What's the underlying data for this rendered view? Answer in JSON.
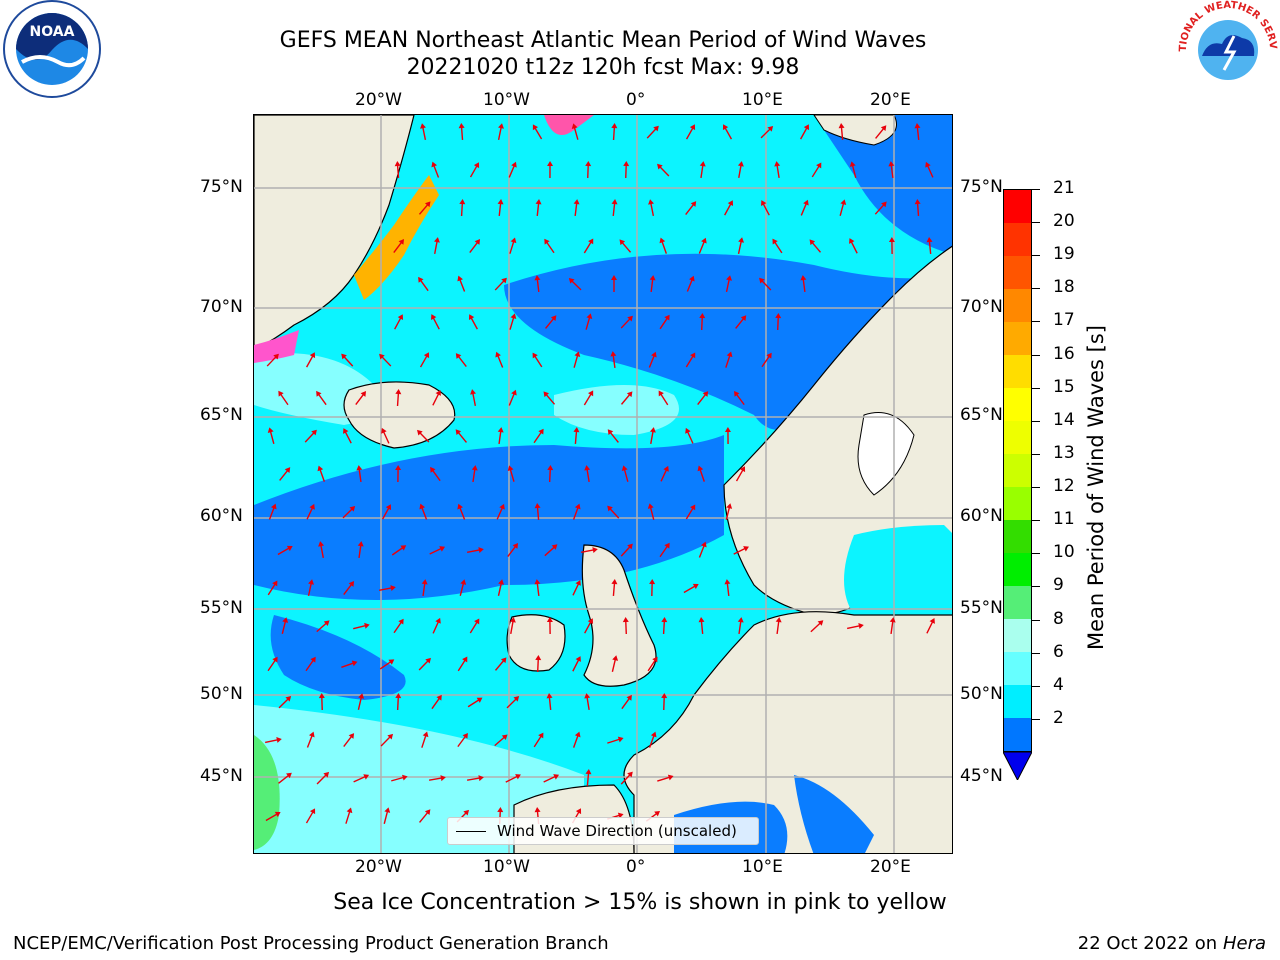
{
  "title_line1": "GEFS MEAN Northeast Atlantic Mean Period of Wind Waves",
  "title_line2": "20221020 t12z 120h fcst   Max: 9.98",
  "top_ticks": [
    "20°W",
    "10°W",
    "0°",
    "10°E",
    "20°E"
  ],
  "bottom_ticks": [
    "20°W",
    "10°W",
    "0°",
    "10°E",
    "20°E"
  ],
  "left_ticks": [
    "75°N",
    "70°N",
    "65°N",
    "60°N",
    "55°N",
    "50°N",
    "45°N"
  ],
  "right_ticks": [
    "75°N",
    "70°N",
    "65°N",
    "60°N",
    "55°N",
    "50°N",
    "45°N"
  ],
  "colorbar": {
    "label": "Mean Period of Wind Waves [s]",
    "ticks": [
      "21",
      "20",
      "19",
      "18",
      "17",
      "16",
      "15",
      "14",
      "13",
      "12",
      "11",
      "10",
      "9",
      "8",
      "6",
      "4",
      "2"
    ],
    "colors": [
      "#ff0000",
      "#ff3300",
      "#ff5500",
      "#ff8800",
      "#ffaa00",
      "#ffdd00",
      "#ffff00",
      "#eeff00",
      "#ccff00",
      "#99ff00",
      "#33dd00",
      "#00ee00",
      "#55ee77",
      "#aaffee",
      "#66ffff",
      "#00eeff",
      "#0077ff"
    ],
    "under_color": "#0000ee"
  },
  "legend": {
    "label": "Wind Wave Direction (unscaled)"
  },
  "note": "Sea Ice Concentration > 15% is shown in pink to yellow",
  "footer_left": "NCEP/EMC/Verification Post Processing Product Generation Branch",
  "footer_right_prefix": "22 Oct 2022 on ",
  "footer_right_host": "Hera",
  "logos": {
    "left": "NOAA",
    "right": "NATIONAL WEATHER SERVICE"
  },
  "palette": {
    "ocean_light": "#0cf4ff",
    "ocean_mid": "#86ffff",
    "ocean_dark": "#0a7dff",
    "land": "#efedde",
    "arrow": "#e8000b",
    "grid": "#b0b0b0"
  }
}
